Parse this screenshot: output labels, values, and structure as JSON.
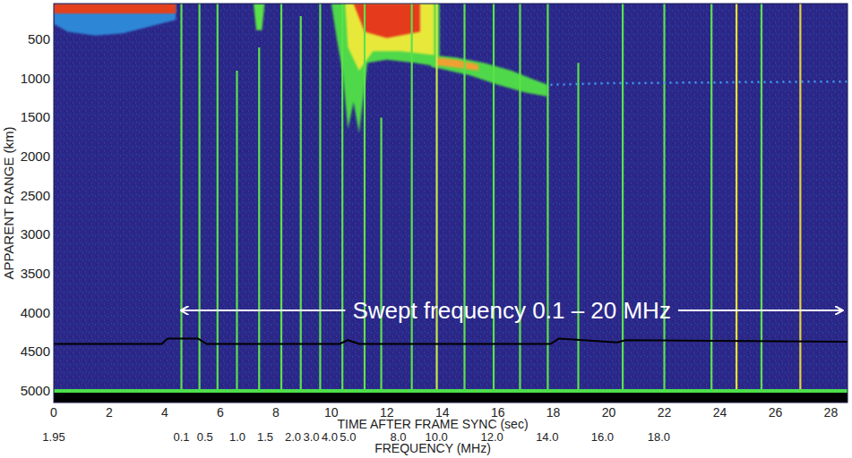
{
  "chart_data": {
    "type": "ionogram",
    "xlabel": "TIME AFTER FRAME SYNC (sec)",
    "x2label": "FREQUENCY (MHz)",
    "ylabel": "APPARENT RANGE (km)",
    "xlim": [
      0,
      28.6
    ],
    "xticks": [
      0,
      2,
      4,
      6,
      8,
      10,
      12,
      14,
      16,
      18,
      20,
      22,
      24,
      26,
      28
    ],
    "x2ticks": [
      {
        "value": 0,
        "label": "1.95"
      },
      {
        "value": 4.6,
        "label": "0.1"
      },
      {
        "value": 5.45,
        "label": "0.5"
      },
      {
        "value": 6.62,
        "label": "1.0"
      },
      {
        "value": 7.62,
        "label": "1.5"
      },
      {
        "value": 8.62,
        "label": "2.0"
      },
      {
        "value": 9.28,
        "label": "3.0"
      },
      {
        "value": 9.94,
        "label": "4.0"
      },
      {
        "value": 10.6,
        "label": "5.0"
      },
      {
        "value": 12.41,
        "label": "8.0"
      },
      {
        "value": 13.79,
        "label": "10.0"
      },
      {
        "value": 15.79,
        "label": "12.0"
      },
      {
        "value": 17.78,
        "label": "14.0"
      },
      {
        "value": 19.77,
        "label": "16.0"
      },
      {
        "value": 21.8,
        "label": "18.0"
      }
    ],
    "ylim": [
      5150,
      40
    ],
    "yticks": [
      500,
      1000,
      1500,
      2000,
      2500,
      3000,
      3500,
      4000,
      4500,
      5000
    ],
    "grid": false,
    "annotation": {
      "text": "Swept frequency 0.1 – 20 MHz",
      "x_start": 4.6,
      "x_end": 28.4,
      "y": 3970
    },
    "echo_regions": [
      {
        "color": "#2e86d6",
        "x": [
          0,
          4.4,
          4.4,
          3.5,
          2.5,
          1.5,
          0.5,
          0
        ],
        "y": [
          40,
          40,
          250,
          330,
          420,
          450,
          400,
          300
        ]
      },
      {
        "color": "#e5411d",
        "x": [
          0,
          4.4,
          4.4,
          0
        ],
        "y": [
          40,
          40,
          170,
          170
        ]
      },
      {
        "color": "#5be24a",
        "x": [
          7.2,
          7.6,
          7.5,
          7.3
        ],
        "y": [
          40,
          40,
          380,
          380
        ]
      },
      {
        "color": "#4fd84a",
        "x": [
          10.0,
          13.9,
          13.9,
          13.0,
          12.0,
          11.3,
          11.0,
          10.8,
          10.6,
          10.4,
          10.2
        ],
        "y": [
          40,
          40,
          850,
          800,
          760,
          800,
          1700,
          1300,
          1650,
          900,
          500
        ]
      },
      {
        "color": "#4fd84a",
        "x": [
          13.6,
          14.5,
          15.5,
          16.5,
          17.2,
          17.8,
          17.8,
          17.0,
          16.0,
          15.0,
          14.0,
          13.6
        ],
        "y": [
          700,
          730,
          800,
          900,
          1000,
          1080,
          1230,
          1180,
          1080,
          960,
          880,
          850
        ]
      },
      {
        "color": "#e8e83a",
        "x": [
          10.5,
          13.7,
          13.7,
          12.5,
          11.5,
          11.0,
          10.6
        ],
        "y": [
          40,
          40,
          700,
          650,
          650,
          900,
          600
        ]
      },
      {
        "color": "#f0a030",
        "x": [
          13.8,
          14.5,
          15.3,
          15.3,
          14.5,
          13.8
        ],
        "y": [
          730,
          760,
          820,
          900,
          860,
          830
        ]
      },
      {
        "color": "#e53a1d",
        "x": [
          10.8,
          13.2,
          13.2,
          12.0,
          11.2
        ],
        "y": [
          40,
          40,
          400,
          480,
          400
        ]
      }
    ],
    "weak_trace": {
      "color": "#3f9cf0",
      "line_style": "dotted",
      "x": [
        17.9,
        19,
        20,
        21,
        22,
        23,
        24,
        25,
        26,
        27,
        28,
        28.6
      ],
      "y": [
        1080,
        1070,
        1060,
        1060,
        1055,
        1050,
        1050,
        1045,
        1045,
        1040,
        1040,
        1040
      ]
    },
    "interference_lines": {
      "x": [
        4.6,
        5.25,
        5.9,
        6.6,
        7.4,
        8.2,
        8.9,
        9.6,
        10.4,
        11.2,
        11.8,
        12.9,
        13.8,
        14.8,
        15.85,
        16.8,
        17.8,
        18.9,
        20.5,
        22.0,
        23.7,
        24.6,
        25.5,
        26.9
      ],
      "top": [
        40,
        40,
        40,
        900,
        600,
        40,
        200,
        40,
        40,
        40,
        1500,
        40,
        40,
        40,
        40,
        40,
        40,
        800,
        40,
        40,
        40,
        40,
        40,
        40
      ],
      "colors": [
        "#5be24a",
        "#5be24a",
        "#5be24a",
        "#5be24a",
        "#5be24a",
        "#5be24a",
        "#5be24a",
        "#5be24a",
        "#5be24a",
        "#5be24a",
        "#5be24a",
        "#5be24a",
        "#c8e84a",
        "#5be24a",
        "#5be24a",
        "#5be24a",
        "#5be24a",
        "#5be24a",
        "#5be24a",
        "#5be24a",
        "#5be24a",
        "#f0e030",
        "#5be24a",
        "#e8d040"
      ]
    },
    "baseline": {
      "color": "#000000",
      "x": [
        0,
        3.9,
        4.1,
        5.2,
        5.5,
        10.3,
        10.6,
        11.0,
        17.9,
        18.2,
        20.3,
        20.6,
        28.6
      ],
      "y": [
        4400,
        4400,
        4330,
        4330,
        4400,
        4400,
        4350,
        4400,
        4400,
        4330,
        4380,
        4350,
        4370
      ]
    },
    "bottom_line": {
      "y": 5000,
      "color": "#4de04a"
    }
  }
}
